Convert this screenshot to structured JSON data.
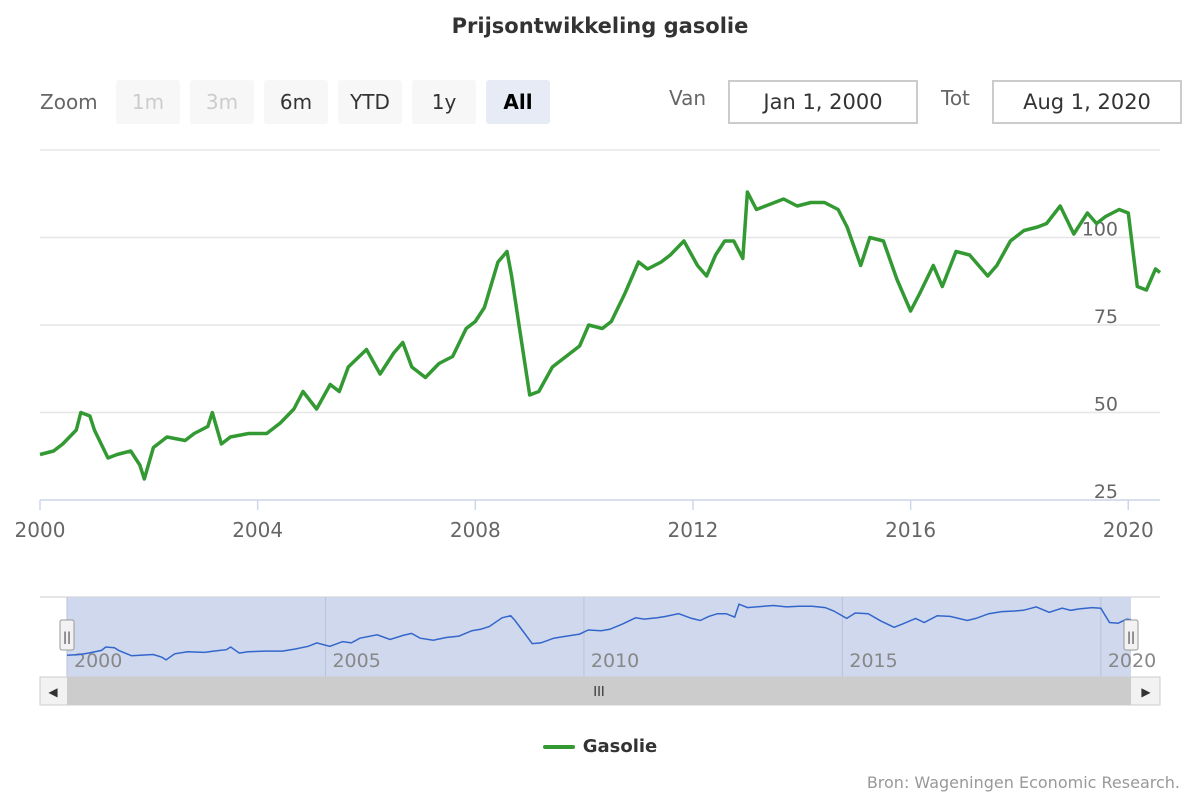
{
  "title": "Prijsontwikkeling gasolie",
  "range_selector": {
    "zoom_label": "Zoom",
    "buttons": [
      {
        "label": "1m",
        "state": "disabled"
      },
      {
        "label": "3m",
        "state": "disabled"
      },
      {
        "label": "6m",
        "state": "normal"
      },
      {
        "label": "YTD",
        "state": "normal"
      },
      {
        "label": "1y",
        "state": "normal"
      },
      {
        "label": "All",
        "state": "active"
      }
    ],
    "from_label": "Van",
    "from_value": "Jan 1, 2000",
    "to_label": "Tot",
    "to_value": "Aug 1, 2020"
  },
  "navigator": {
    "scrollbar_grip": "III",
    "left_arrow": "◀",
    "right_arrow": "▶",
    "handle_grip": "||",
    "labels": [
      "2000",
      "2005",
      "2010",
      "2015",
      "2020"
    ]
  },
  "legend": {
    "label": "Gasolie"
  },
  "credits": "Bron: Wageningen Economic Research.",
  "colors": {
    "series": "#339933",
    "navigator_line": "#3366cc",
    "navigator_fill": "#ccd6eb",
    "active_button": "#e6ebf5"
  },
  "chart_data": {
    "type": "line",
    "xlabel": "",
    "ylabel": "",
    "x_ticks": [
      "2000",
      "2004",
      "2008",
      "2012",
      "2016",
      "2020"
    ],
    "y_ticks": [
      "25",
      "50",
      "75",
      "100"
    ],
    "ylim": [
      25,
      125
    ],
    "xlim": [
      "2000-01",
      "2020-08"
    ],
    "grid": true,
    "series": [
      {
        "name": "Gasolie",
        "x": [
          "2000-01",
          "2000-04",
          "2000-06",
          "2000-09",
          "2000-10",
          "2000-12",
          "2001-01",
          "2001-04",
          "2001-06",
          "2001-09",
          "2001-11",
          "2001-12",
          "2002-02",
          "2002-05",
          "2002-09",
          "2002-11",
          "2003-02",
          "2003-03",
          "2003-05",
          "2003-07",
          "2003-11",
          "2004-03",
          "2004-06",
          "2004-09",
          "2004-11",
          "2005-02",
          "2005-05",
          "2005-07",
          "2005-09",
          "2006-01",
          "2006-04",
          "2006-07",
          "2006-09",
          "2006-11",
          "2007-02",
          "2007-05",
          "2007-08",
          "2007-11",
          "2008-01",
          "2008-03",
          "2008-06",
          "2008-08",
          "2008-09",
          "2008-11",
          "2009-01",
          "2009-03",
          "2009-06",
          "2009-07",
          "2009-09",
          "2009-12",
          "2010-02",
          "2010-05",
          "2010-07",
          "2010-10",
          "2011-01",
          "2011-03",
          "2011-06",
          "2011-08",
          "2011-11",
          "2012-02",
          "2012-04",
          "2012-06",
          "2012-08",
          "2012-10",
          "2012-12",
          "2013-01",
          "2013-03",
          "2013-05",
          "2013-09",
          "2013-12",
          "2014-03",
          "2014-06",
          "2014-09",
          "2014-11",
          "2015-02",
          "2015-04",
          "2015-07",
          "2015-10",
          "2016-01",
          "2016-03",
          "2016-06",
          "2016-08",
          "2016-11",
          "2017-02",
          "2017-06",
          "2017-08",
          "2017-11",
          "2018-02",
          "2018-05",
          "2018-07",
          "2018-10",
          "2019-01",
          "2019-04",
          "2019-06",
          "2019-08",
          "2019-11",
          "2020-01",
          "2020-03",
          "2020-05",
          "2020-07",
          "2020-08"
        ],
        "values": [
          38,
          39,
          41,
          45,
          50,
          49,
          45,
          37,
          38,
          39,
          35,
          31,
          40,
          43,
          42,
          44,
          46,
          50,
          41,
          43,
          44,
          44,
          47,
          51,
          56,
          51,
          58,
          56,
          63,
          68,
          61,
          67,
          70,
          63,
          60,
          64,
          66,
          74,
          76,
          80,
          93,
          96,
          89,
          72,
          55,
          56,
          63,
          64,
          66,
          69,
          75,
          74,
          76,
          84,
          93,
          91,
          93,
          95,
          99,
          92,
          89,
          95,
          99,
          99,
          94,
          113,
          108,
          109,
          111,
          109,
          110,
          110,
          108,
          103,
          92,
          100,
          99,
          88,
          79,
          84,
          92,
          86,
          96,
          95,
          89,
          92,
          99,
          102,
          103,
          104,
          109,
          101,
          107,
          104,
          106,
          108,
          107,
          86,
          85,
          91,
          90
        ]
      }
    ]
  }
}
